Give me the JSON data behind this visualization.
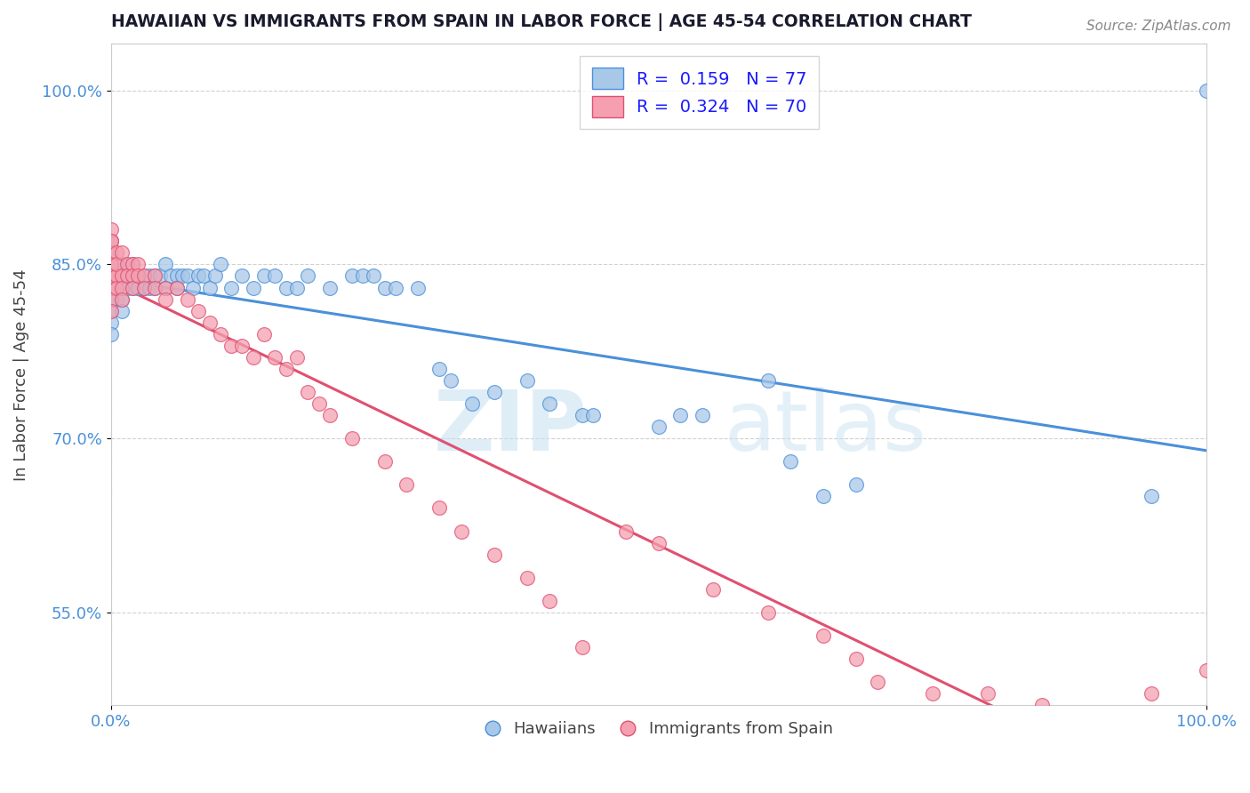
{
  "title": "HAWAIIAN VS IMMIGRANTS FROM SPAIN IN LABOR FORCE | AGE 45-54 CORRELATION CHART",
  "source": "Source: ZipAtlas.com",
  "ylabel": "In Labor Force | Age 45-54",
  "xmin": 0.0,
  "xmax": 1.0,
  "ymin": 0.47,
  "ymax": 1.04,
  "blue_R": 0.159,
  "blue_N": 77,
  "pink_R": 0.324,
  "pink_N": 70,
  "blue_color": "#a8c8e8",
  "pink_color": "#f4a0b0",
  "blue_line_color": "#4a90d9",
  "pink_line_color": "#e05070",
  "legend_blue_label": "R =  0.159   N = 77",
  "legend_pink_label": "R =  0.324   N = 70",
  "blue_scatter_x": [
    0.0,
    0.0,
    0.0,
    0.0,
    0.0,
    0.0,
    0.0,
    0.0,
    0.0,
    0.005,
    0.005,
    0.005,
    0.005,
    0.01,
    0.01,
    0.01,
    0.01,
    0.01,
    0.015,
    0.015,
    0.02,
    0.02,
    0.02,
    0.025,
    0.025,
    0.03,
    0.03,
    0.035,
    0.035,
    0.04,
    0.04,
    0.045,
    0.05,
    0.05,
    0.055,
    0.06,
    0.06,
    0.065,
    0.07,
    0.075,
    0.08,
    0.085,
    0.09,
    0.095,
    0.1,
    0.11,
    0.12,
    0.13,
    0.14,
    0.15,
    0.16,
    0.17,
    0.18,
    0.2,
    0.22,
    0.23,
    0.24,
    0.25,
    0.26,
    0.28,
    0.3,
    0.31,
    0.33,
    0.35,
    0.38,
    0.4,
    0.43,
    0.44,
    0.5,
    0.52,
    0.54,
    0.6,
    0.62,
    0.65,
    0.68,
    0.95,
    1.0
  ],
  "blue_scatter_y": [
    0.83,
    0.85,
    0.87,
    0.84,
    0.86,
    0.82,
    0.81,
    0.8,
    0.79,
    0.85,
    0.84,
    0.83,
    0.82,
    0.85,
    0.84,
    0.83,
    0.82,
    0.81,
    0.84,
    0.83,
    0.85,
    0.84,
    0.83,
    0.84,
    0.83,
    0.84,
    0.83,
    0.84,
    0.83,
    0.84,
    0.83,
    0.84,
    0.85,
    0.83,
    0.84,
    0.84,
    0.83,
    0.84,
    0.84,
    0.83,
    0.84,
    0.84,
    0.83,
    0.84,
    0.85,
    0.83,
    0.84,
    0.83,
    0.84,
    0.84,
    0.83,
    0.83,
    0.84,
    0.83,
    0.84,
    0.84,
    0.84,
    0.83,
    0.83,
    0.83,
    0.76,
    0.75,
    0.73,
    0.74,
    0.75,
    0.73,
    0.72,
    0.72,
    0.71,
    0.72,
    0.72,
    0.75,
    0.68,
    0.65,
    0.66,
    0.65,
    1.0
  ],
  "pink_scatter_x": [
    0.0,
    0.0,
    0.0,
    0.0,
    0.0,
    0.0,
    0.0,
    0.0,
    0.0,
    0.0,
    0.0,
    0.005,
    0.005,
    0.005,
    0.005,
    0.01,
    0.01,
    0.01,
    0.01,
    0.015,
    0.015,
    0.02,
    0.02,
    0.02,
    0.025,
    0.025,
    0.03,
    0.03,
    0.04,
    0.04,
    0.05,
    0.05,
    0.06,
    0.07,
    0.08,
    0.09,
    0.1,
    0.11,
    0.12,
    0.13,
    0.14,
    0.15,
    0.16,
    0.17,
    0.18,
    0.19,
    0.2,
    0.22,
    0.25,
    0.27,
    0.3,
    0.32,
    0.35,
    0.38,
    0.4,
    0.43,
    0.47,
    0.5,
    0.55,
    0.6,
    0.65,
    0.68,
    0.7,
    0.75,
    0.8,
    0.85,
    0.9,
    0.92,
    0.95,
    1.0
  ],
  "pink_scatter_y": [
    0.87,
    0.88,
    0.85,
    0.84,
    0.86,
    0.87,
    0.83,
    0.82,
    0.84,
    0.85,
    0.81,
    0.86,
    0.84,
    0.83,
    0.85,
    0.86,
    0.84,
    0.83,
    0.82,
    0.85,
    0.84,
    0.85,
    0.84,
    0.83,
    0.85,
    0.84,
    0.84,
    0.83,
    0.84,
    0.83,
    0.83,
    0.82,
    0.83,
    0.82,
    0.81,
    0.8,
    0.79,
    0.78,
    0.78,
    0.77,
    0.79,
    0.77,
    0.76,
    0.77,
    0.74,
    0.73,
    0.72,
    0.7,
    0.68,
    0.66,
    0.64,
    0.62,
    0.6,
    0.58,
    0.56,
    0.52,
    0.62,
    0.61,
    0.57,
    0.55,
    0.53,
    0.51,
    0.49,
    0.48,
    0.48,
    0.47,
    0.45,
    0.46,
    0.48,
    0.5
  ],
  "watermark_zip": "ZIP",
  "watermark_atlas": "atlas",
  "ytick_labels": [
    "55.0%",
    "70.0%",
    "85.0%",
    "100.0%"
  ],
  "ytick_values": [
    0.55,
    0.7,
    0.85,
    1.0
  ],
  "xtick_labels": [
    "0.0%",
    "100.0%"
  ],
  "xtick_values": [
    0.0,
    1.0
  ],
  "grid_color": "#cccccc",
  "background_color": "#ffffff",
  "tick_color": "#4a90d9"
}
